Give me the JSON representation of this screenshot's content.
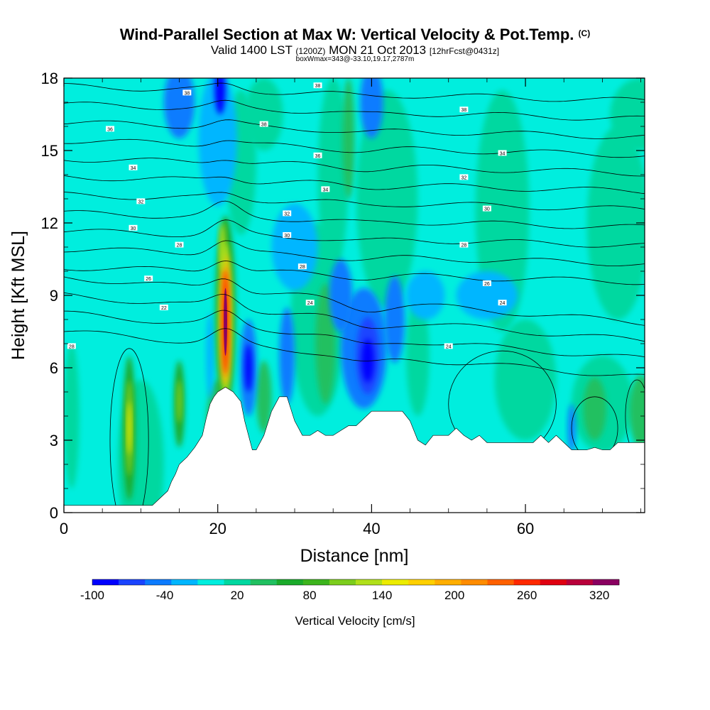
{
  "header": {
    "title": "Wind-Parallel Section at Max W: Vertical Velocity & Pot.Temp.",
    "copyright": "(C)",
    "valid_prefix": "Valid 1400 LST",
    "valid_utc": "(1200Z)",
    "valid_date": "MON 21 Oct 2013",
    "forecast": "[12hrFcst@0431z]",
    "box_info": "boxWmax=343@-33.10,19.17,2787m"
  },
  "chart_data": {
    "type": "heatmap",
    "title": "Wind-Parallel Section at Max W: Vertical Velocity & Pot.Temp.",
    "xlabel": "Distance [nm]",
    "ylabel": "Height [Kft MSL]",
    "xlim": [
      0,
      75.5
    ],
    "ylim": [
      0,
      18
    ],
    "x_ticks": [
      0,
      20,
      40,
      60
    ],
    "y_ticks": [
      0,
      3,
      6,
      9,
      12,
      15,
      18
    ],
    "colorbar": {
      "label": "Vertical Velocity [cm/s]",
      "tick_labels": [
        "-100",
        "-40",
        "20",
        "80",
        "140",
        "200",
        "260",
        "320"
      ],
      "colors": [
        "#0000ff",
        "#1a44ff",
        "#0b7bff",
        "#00b6ff",
        "#00eede",
        "#00d8a0",
        "#20c060",
        "#1aaa2a",
        "#3cb41c",
        "#7ccd1c",
        "#b0e01a",
        "#ecec00",
        "#ffd000",
        "#ffae00",
        "#ff8c00",
        "#ff6000",
        "#ff2800",
        "#e00010",
        "#b8003a",
        "#8a0060"
      ]
    },
    "terrain": [
      [
        0,
        0.3
      ],
      [
        3,
        0.3
      ],
      [
        6,
        0.3
      ],
      [
        9,
        0.3
      ],
      [
        11.5,
        0.3
      ],
      [
        12.5,
        0.6
      ],
      [
        13.5,
        0.9
      ],
      [
        14,
        1.3
      ],
      [
        14.5,
        1.6
      ],
      [
        15,
        2.0
      ],
      [
        16,
        2.3
      ],
      [
        17,
        2.7
      ],
      [
        18,
        3.2
      ],
      [
        18.5,
        3.9
      ],
      [
        19,
        4.5
      ],
      [
        19.5,
        4.8
      ],
      [
        20,
        5.0
      ],
      [
        21,
        5.2
      ],
      [
        22,
        5.0
      ],
      [
        23,
        4.6
      ],
      [
        23.5,
        3.8
      ],
      [
        24,
        3.2
      ],
      [
        24.5,
        2.6
      ],
      [
        25,
        2.6
      ],
      [
        26,
        3.2
      ],
      [
        27,
        4.2
      ],
      [
        28,
        4.8
      ],
      [
        29,
        4.8
      ],
      [
        30,
        3.8
      ],
      [
        30.5,
        3.5
      ],
      [
        31,
        3.2
      ],
      [
        32,
        3.2
      ],
      [
        33,
        3.4
      ],
      [
        34,
        3.2
      ],
      [
        35,
        3.2
      ],
      [
        36,
        3.4
      ],
      [
        37,
        3.6
      ],
      [
        38,
        3.6
      ],
      [
        39,
        3.9
      ],
      [
        40,
        4.2
      ],
      [
        42,
        4.2
      ],
      [
        44,
        4.2
      ],
      [
        45,
        3.8
      ],
      [
        46,
        3.0
      ],
      [
        47,
        2.8
      ],
      [
        48,
        3.2
      ],
      [
        50,
        3.2
      ],
      [
        51,
        3.5
      ],
      [
        52,
        3.2
      ],
      [
        53,
        3.0
      ],
      [
        54,
        3.2
      ],
      [
        55,
        2.9
      ],
      [
        57,
        2.9
      ],
      [
        59,
        2.9
      ],
      [
        61,
        2.9
      ],
      [
        62,
        3.2
      ],
      [
        63,
        2.9
      ],
      [
        64,
        3.2
      ],
      [
        65,
        2.9
      ],
      [
        66,
        2.6
      ],
      [
        67,
        2.6
      ],
      [
        68,
        2.6
      ],
      [
        69,
        2.7
      ],
      [
        70,
        2.6
      ],
      [
        71,
        2.6
      ],
      [
        72,
        2.9
      ],
      [
        73,
        2.9
      ],
      [
        74,
        2.9
      ],
      [
        75.5,
        2.9
      ]
    ],
    "updraft_cores": [
      {
        "x": 21,
        "y": 8.0,
        "peak_cm_s": 343
      },
      {
        "x": 8.5,
        "y": 3.5,
        "peak_cm_s": 140
      },
      {
        "x": 15,
        "y": 4.5,
        "peak_cm_s": 110
      },
      {
        "x": 34,
        "y": 7.0,
        "peak_cm_s": 60
      }
    ],
    "downdraft_cores": [
      {
        "x": 39.5,
        "y": 6.5,
        "peak_cm_s": -90
      },
      {
        "x": 24,
        "y": 6.0,
        "peak_cm_s": -70
      },
      {
        "x": 20,
        "y": 17.5,
        "peak_cm_s": -90
      },
      {
        "x": 29,
        "y": 10.0,
        "peak_cm_s": -50
      }
    ],
    "isentrope_labels": [
      "22",
      "24",
      "26",
      "28",
      "30",
      "32",
      "34",
      "36",
      "38"
    ]
  }
}
